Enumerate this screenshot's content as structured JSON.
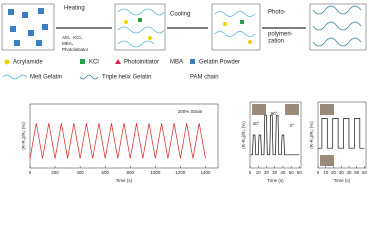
{
  "diagram": {
    "heating": {
      "title": "Heating",
      "lines": [
        "AM、KCl、",
        "MBA、",
        "Photoinitiator"
      ]
    },
    "cooling": "Cooling",
    "photo": [
      "Photo-",
      "polymeri-",
      "zation"
    ],
    "legend": [
      "Acrylamide",
      "KCl",
      "Photoinitiator",
      "MBA",
      "Gelatin Powder",
      "Melt Gelatin",
      "Triple helix Gelatin",
      "PAM chain"
    ]
  },
  "chart_data": [
    {
      "type": "line",
      "y_label": "(R-R₀)/R₀ (%)",
      "x_label": "Time (s)",
      "annotations": [
        "200% Strain"
      ],
      "color": "#e02020",
      "x": [
        0,
        50,
        100,
        150,
        200,
        250,
        300,
        350,
        400,
        450,
        500,
        550,
        600,
        650,
        700,
        750,
        800,
        850,
        900,
        950,
        1000,
        1050,
        1100,
        1150,
        1200,
        1250,
        1300,
        1350,
        1400
      ],
      "values": [
        0.15,
        0.7,
        0.15,
        0.7,
        0.15,
        0.7,
        0.15,
        0.7,
        0.15,
        0.7,
        0.15,
        0.7,
        0.15,
        0.7,
        0.15,
        0.7,
        0.15,
        0.7,
        0.15,
        0.7,
        0.15,
        0.7,
        0.15,
        0.7,
        0.15,
        0.7,
        0.15,
        0.7,
        0.15
      ],
      "xlim": [
        0,
        1500
      ],
      "xticks": [
        0,
        200,
        400,
        600,
        800,
        1000,
        1200,
        1400
      ],
      "ylim": [
        0,
        1
      ]
    },
    {
      "type": "line",
      "y_label": "(R-R₀)/R₀ (%)",
      "x_label": "Time (s)",
      "annotations": [
        "30°",
        "90°",
        "0°"
      ],
      "color": "#111111",
      "x": [
        0,
        3,
        4,
        6,
        7,
        10,
        11,
        13,
        14,
        17,
        18,
        20,
        21,
        24,
        25,
        27,
        28,
        31,
        32,
        34,
        35,
        38,
        39,
        41,
        42,
        45,
        46,
        60
      ],
      "values": [
        0.2,
        0.2,
        0.5,
        0.5,
        0.2,
        0.2,
        0.5,
        0.5,
        0.2,
        0.2,
        0.8,
        0.8,
        0.2,
        0.2,
        0.8,
        0.8,
        0.2,
        0.2,
        0.8,
        0.8,
        0.2,
        0.2,
        0.5,
        0.5,
        0.2,
        0.2,
        0.2,
        0.2
      ],
      "xlim": [
        0,
        62
      ],
      "xticks": [
        0,
        10,
        20,
        30,
        40,
        50,
        60
      ],
      "ylim": [
        0,
        1
      ]
    },
    {
      "type": "line",
      "y_label": "(R-R₀)/R₀ (%)",
      "x_label": "Time (s)",
      "annotations": [],
      "color": "#111111",
      "x": [
        0,
        5,
        5,
        12,
        12,
        19,
        19,
        26,
        26,
        33,
        33,
        40,
        40,
        47,
        47,
        54,
        54,
        60
      ],
      "values": [
        0.3,
        0.3,
        0.75,
        0.75,
        0.3,
        0.3,
        0.75,
        0.75,
        0.3,
        0.3,
        0.75,
        0.75,
        0.3,
        0.3,
        0.75,
        0.75,
        0.3,
        0.3
      ],
      "xlim": [
        0,
        62
      ],
      "xticks": [
        0,
        10,
        20,
        30,
        40,
        50,
        60
      ],
      "ylim": [
        0,
        1
      ]
    }
  ]
}
